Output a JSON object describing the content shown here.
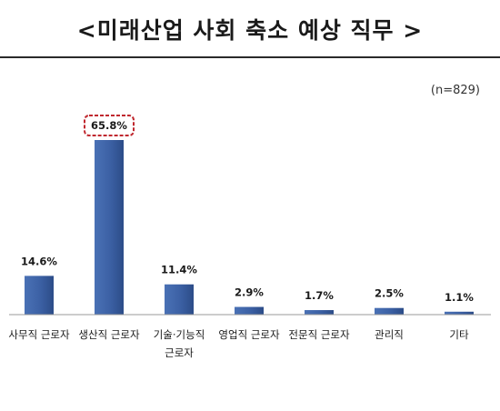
{
  "chart_data": {
    "type": "bar",
    "title": "<미래산업 사회 축소 예상 직무 >",
    "note": "(n=829)",
    "categories": [
      "사무직 근로자",
      "생산직 근로자",
      "기술·기능직 근로자",
      "영업직 근로자",
      "전문직 근로자",
      "관리직",
      "기타"
    ],
    "category_lines": [
      [
        "사무직 근로자"
      ],
      [
        "생산직 근로자"
      ],
      [
        "기술·기능직",
        "근로자"
      ],
      [
        "영업직 근로자"
      ],
      [
        "전문직 근로자"
      ],
      [
        "관리직"
      ],
      [
        "기타"
      ]
    ],
    "values": [
      14.6,
      65.8,
      11.4,
      2.9,
      1.7,
      2.5,
      1.1
    ],
    "value_labels": [
      "14.6%",
      "65.8%",
      "11.4%",
      "2.9%",
      "1.7%",
      "2.5%",
      "1.1%"
    ],
    "highlight_index": 1,
    "ylim": [
      0,
      70
    ],
    "grid": false,
    "xlabel": "",
    "ylabel": "",
    "colors": {
      "bar": "#3f64a7",
      "bar_dark": "#2b4a85",
      "highlight_border": "#c0282f",
      "axis": "#9a9a9a"
    }
  }
}
